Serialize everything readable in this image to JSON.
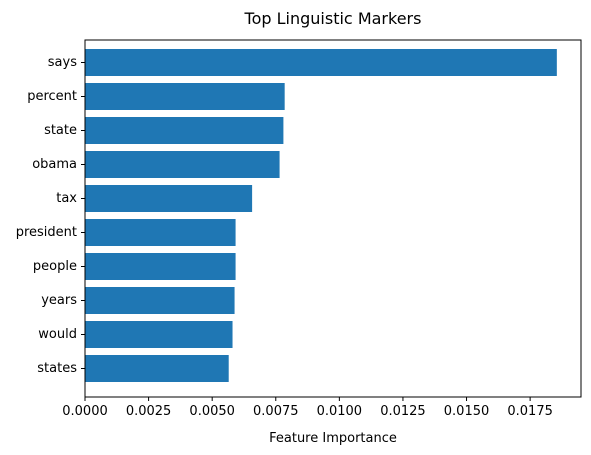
{
  "chart_data": {
    "type": "bar",
    "orientation": "horizontal",
    "title": "Top Linguistic Markers",
    "xlabel": "Feature Importance",
    "ylabel": "",
    "categories": [
      "says",
      "percent",
      "state",
      "obama",
      "tax",
      "president",
      "people",
      "years",
      "would",
      "states"
    ],
    "values": [
      0.01855,
      0.00785,
      0.0078,
      0.00765,
      0.00657,
      0.00592,
      0.00592,
      0.00588,
      0.0058,
      0.00565
    ],
    "xlim": [
      0,
      0.0195
    ],
    "xticks": [
      0,
      0.0025,
      0.005,
      0.0075,
      0.01,
      0.0125,
      0.015,
      0.0175
    ],
    "xtick_labels": [
      "0.0000",
      "0.0025",
      "0.0050",
      "0.0075",
      "0.0100",
      "0.0125",
      "0.0150",
      "0.0175"
    ],
    "bar_color": "#1f77b4",
    "grid": false,
    "legend": "none"
  }
}
